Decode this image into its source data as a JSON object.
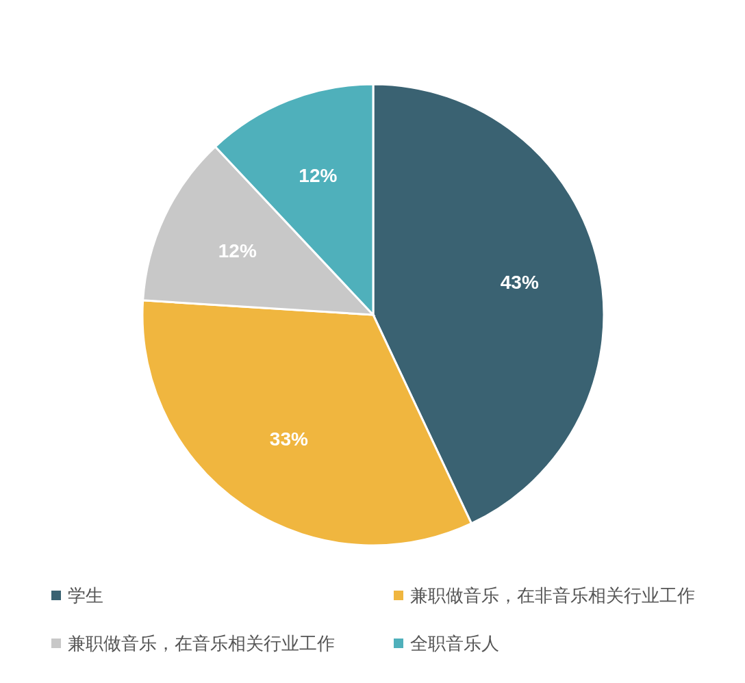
{
  "chart_data": {
    "type": "pie",
    "categories": [
      "学生",
      "兼职做音乐，在非音乐相关行业工作",
      "兼职做音乐，在音乐相关行业工作",
      "全职音乐人"
    ],
    "values": [
      43,
      33,
      12,
      12
    ],
    "colors": [
      "#3a6272",
      "#f0b63f",
      "#c8c8c8",
      "#4fb0bb"
    ],
    "value_labels": [
      "43%",
      "33%",
      "12%",
      "12%"
    ],
    "legend": "bottom"
  }
}
